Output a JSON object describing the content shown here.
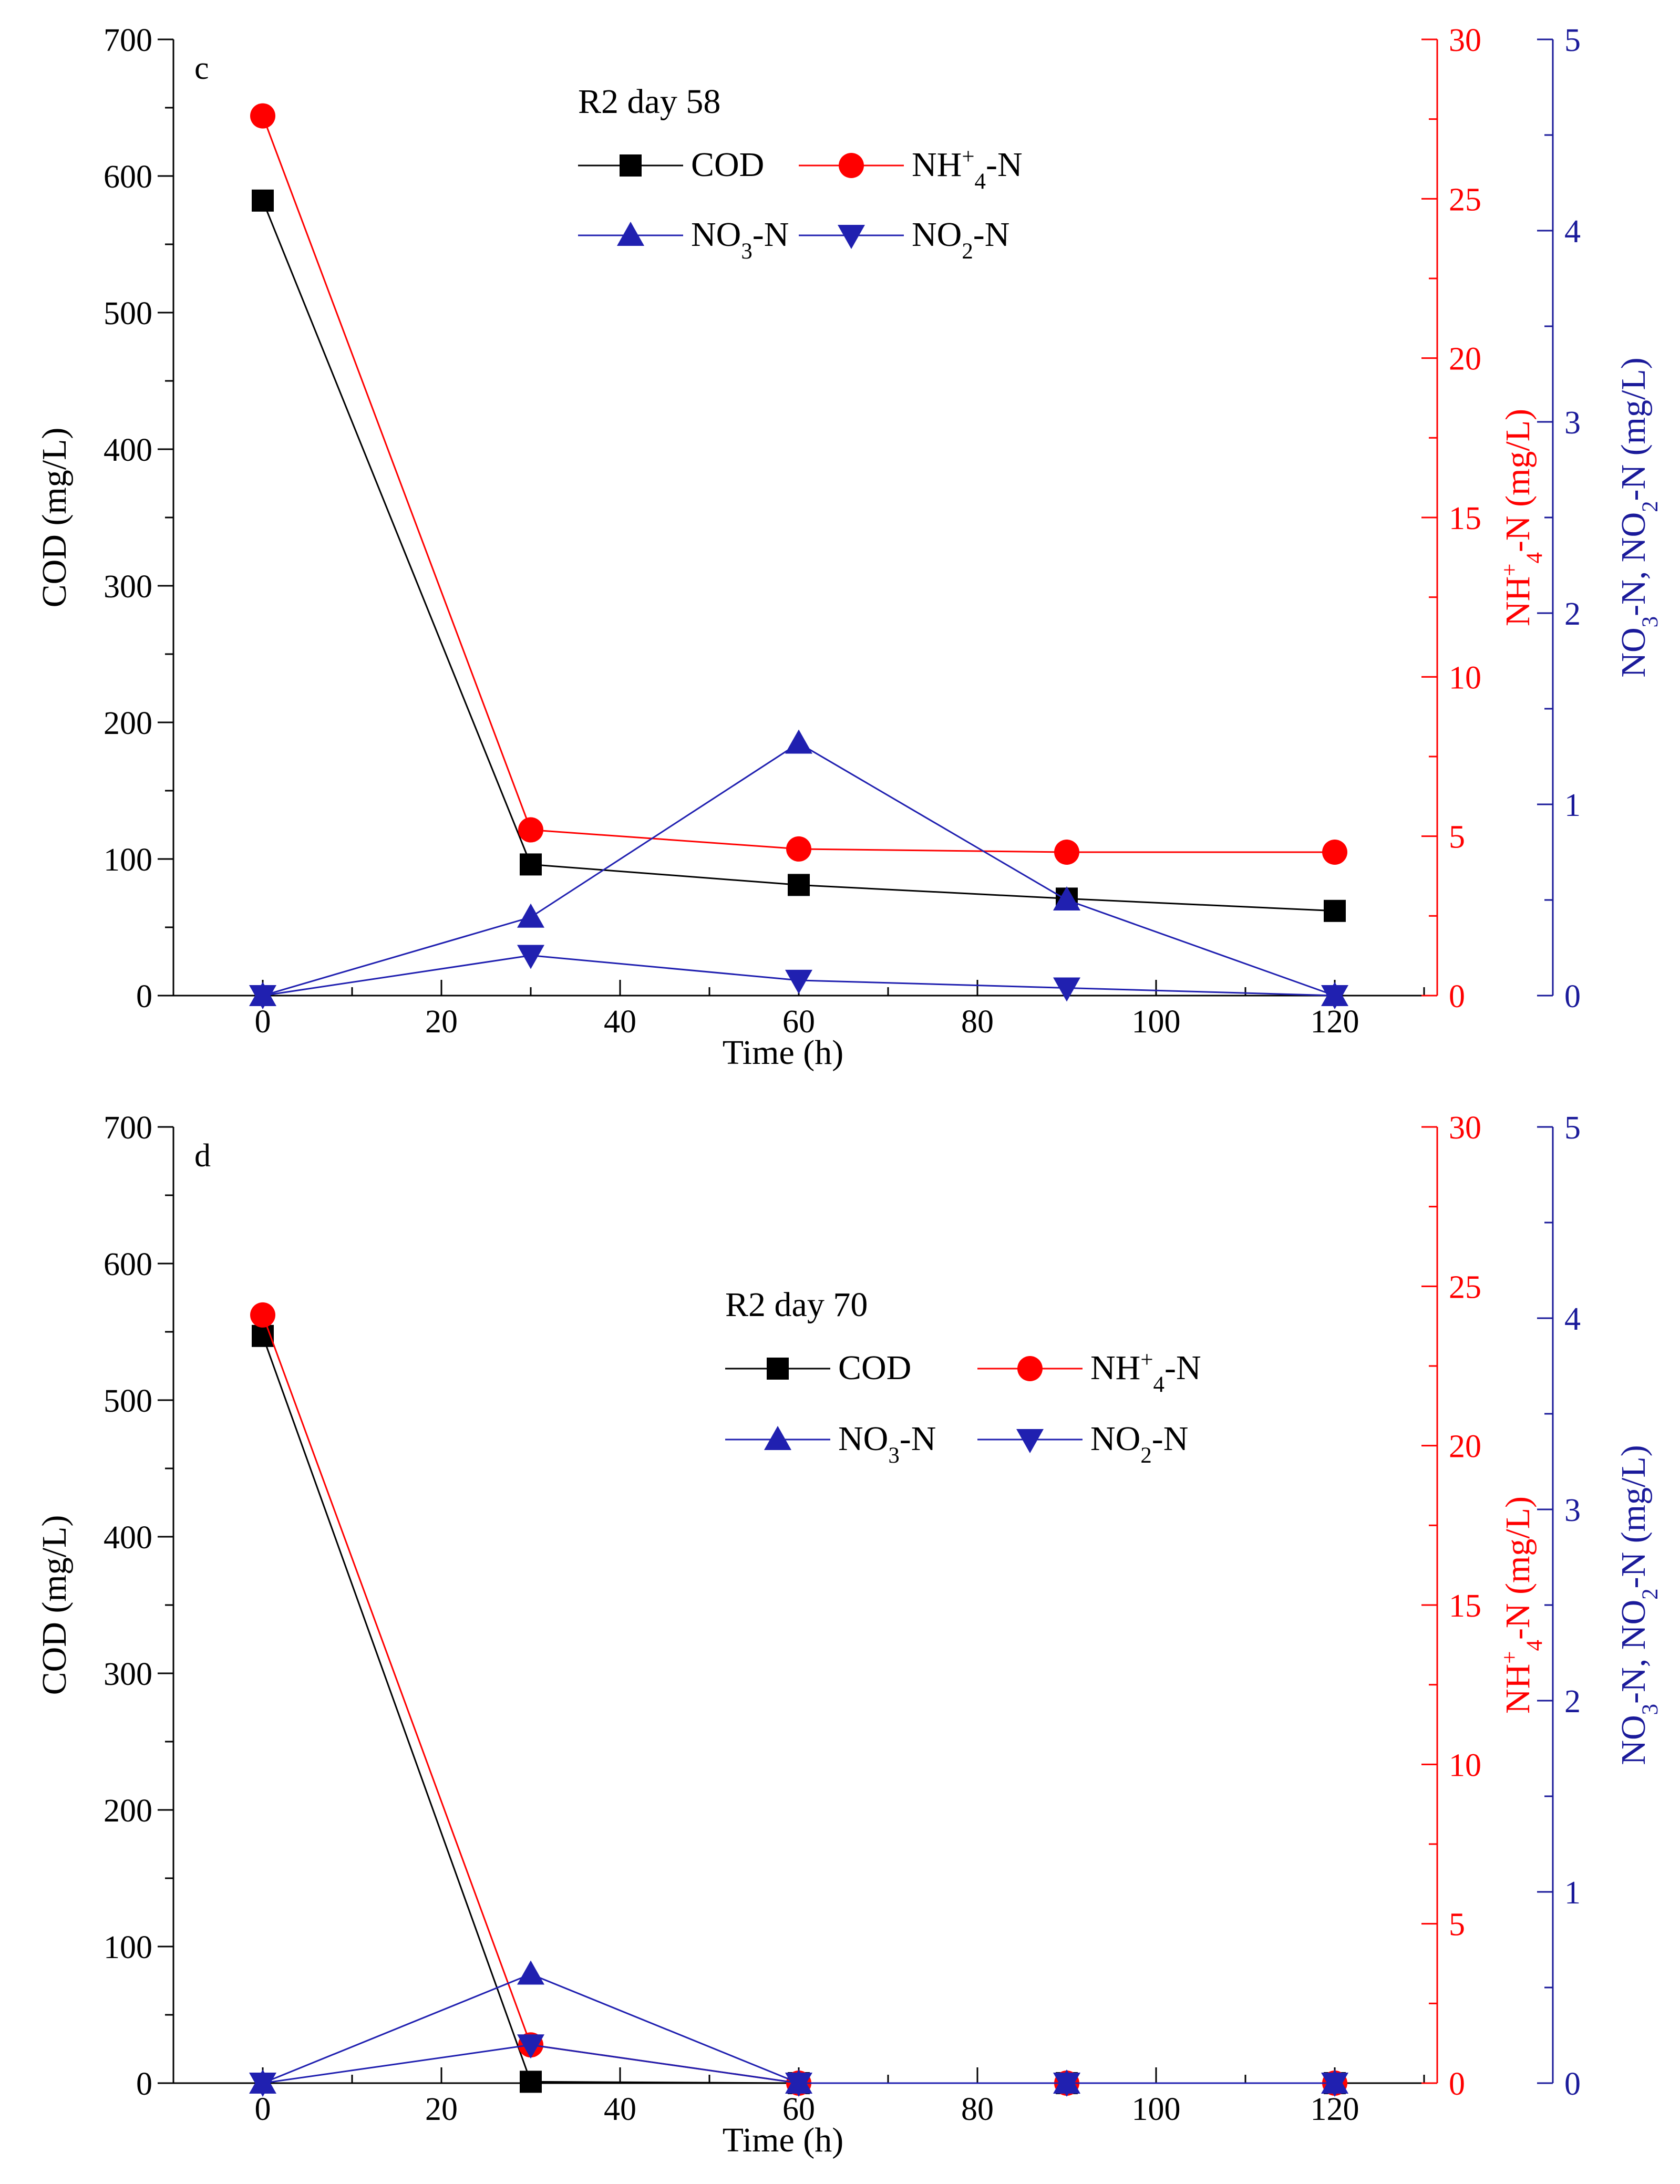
{
  "colors": {
    "cod": "#000000",
    "nh4": "#ff0000",
    "no3": "#2020b0",
    "no2": "#2020b0",
    "axis_left": "#000000",
    "axis_right1": "#ff0000",
    "axis_right2": "#1a1a9a"
  },
  "chart_data": [
    {
      "type": "line",
      "panel_label": "c",
      "title": "R2 day 58",
      "xlabel": "Time (h)",
      "ylabel_left": "COD (mg/L)",
      "ylabel_right1": "NH4+-N (mg/L)",
      "ylabel_right2": "NO3-N, NO2-N (mg/L)",
      "xlim": [
        -10,
        130
      ],
      "x_ticks": [
        0,
        20,
        40,
        60,
        80,
        100,
        120
      ],
      "y_left": {
        "range": [
          0,
          700
        ],
        "ticks": [
          0,
          100,
          200,
          300,
          400,
          500,
          600,
          700
        ]
      },
      "y_right1": {
        "range": [
          0,
          30
        ],
        "ticks": [
          0,
          5,
          10,
          15,
          20,
          25,
          30
        ]
      },
      "y_right2": {
        "range": [
          0,
          5
        ],
        "ticks": [
          0,
          1,
          2,
          3,
          4,
          5
        ]
      },
      "x": [
        0,
        30,
        60,
        90,
        120
      ],
      "series": [
        {
          "name": "COD",
          "axis": "left",
          "marker": "square",
          "values": [
            582,
            96,
            81,
            71,
            62
          ]
        },
        {
          "name": "NH4+-N",
          "axis": "right1",
          "marker": "circle",
          "values": [
            27.6,
            5.2,
            4.6,
            4.5,
            4.5
          ]
        },
        {
          "name": "NO3-N",
          "axis": "right2",
          "marker": "triangle-up",
          "values": [
            0.0,
            0.41,
            1.32,
            0.5,
            0.0
          ]
        },
        {
          "name": "NO2-N",
          "axis": "right2",
          "marker": "triangle-down",
          "values": [
            0.0,
            0.21,
            0.08,
            0.04,
            0.0
          ]
        }
      ],
      "legend": {
        "placement": "top-center",
        "entries": [
          "COD",
          "NH4+-N",
          "NO3-N",
          "NO2-N"
        ]
      }
    },
    {
      "type": "line",
      "panel_label": "d",
      "title": "R2 day 70",
      "xlabel": "Time (h)",
      "ylabel_left": "COD (mg/L)",
      "ylabel_right1": "NH4+-N (mg/L)",
      "ylabel_right2": "NO3-N, NO2-N (mg/L)",
      "xlim": [
        -10,
        130
      ],
      "x_ticks": [
        0,
        20,
        40,
        60,
        80,
        100,
        120
      ],
      "y_left": {
        "range": [
          0,
          700
        ],
        "ticks": [
          0,
          100,
          200,
          300,
          400,
          500,
          600,
          700
        ]
      },
      "y_right1": {
        "range": [
          0,
          30
        ],
        "ticks": [
          0,
          5,
          10,
          15,
          20,
          25,
          30
        ]
      },
      "y_right2": {
        "range": [
          0,
          5
        ],
        "ticks": [
          0,
          1,
          2,
          3,
          4,
          5
        ]
      },
      "x": [
        0,
        30,
        60,
        90,
        120
      ],
      "series": [
        {
          "name": "COD",
          "axis": "left",
          "marker": "square",
          "values": [
            547,
            1,
            0,
            0,
            0
          ]
        },
        {
          "name": "NH4+-N",
          "axis": "right1",
          "marker": "circle",
          "values": [
            24.1,
            1.2,
            0.0,
            0.0,
            0.0
          ]
        },
        {
          "name": "NO3-N",
          "axis": "right2",
          "marker": "triangle-up",
          "values": [
            0.0,
            0.57,
            0.0,
            0.0,
            0.0
          ]
        },
        {
          "name": "NO2-N",
          "axis": "right2",
          "marker": "triangle-down",
          "values": [
            0.0,
            0.2,
            0.0,
            0.0,
            0.0
          ]
        }
      ],
      "legend": {
        "placement": "middle-center",
        "entries": [
          "COD",
          "NH4+-N",
          "NO3-N",
          "NO2-N"
        ]
      }
    }
  ]
}
